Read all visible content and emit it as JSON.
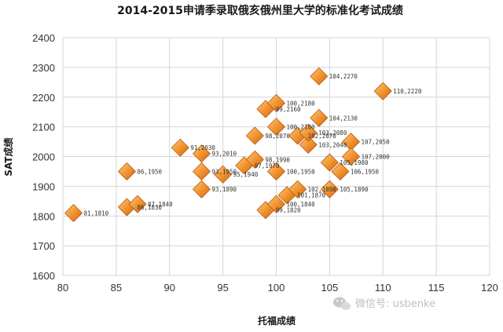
{
  "chart_data": {
    "type": "scatter",
    "title": "2014-2015申请季录取俄亥俄州里大学的标准化考试成绩",
    "xlabel": "托福成绩",
    "ylabel": "SAT成绩",
    "xlim": [
      80,
      120
    ],
    "ylim": [
      1600,
      2400
    ],
    "xticks": [
      "80",
      "85",
      "90",
      "95",
      "100",
      "105",
      "110",
      "115",
      "120"
    ],
    "yticks": [
      "1600",
      "1700",
      "1800",
      "1900",
      "2000",
      "2100",
      "2200",
      "2300",
      "2400"
    ],
    "grid": true,
    "marker_color": "#f0902a",
    "marker_shape": "diamond",
    "points": [
      {
        "x": 81,
        "y": 1810,
        "label": "81,1810"
      },
      {
        "x": 86,
        "y": 1950,
        "label": "86,1950"
      },
      {
        "x": 86,
        "y": 1830,
        "label": "86,1830"
      },
      {
        "x": 87,
        "y": 1840,
        "label": "87,1840"
      },
      {
        "x": 91,
        "y": 2030,
        "label": "91,2030"
      },
      {
        "x": 93,
        "y": 2010,
        "label": "93,2010"
      },
      {
        "x": 93,
        "y": 1950,
        "label": "93,1950"
      },
      {
        "x": 93,
        "y": 1890,
        "label": "93,1890"
      },
      {
        "x": 95,
        "y": 1940,
        "label": "95,1940"
      },
      {
        "x": 97,
        "y": 1970,
        "label": "97,1970"
      },
      {
        "x": 98,
        "y": 2070,
        "label": "98,2070"
      },
      {
        "x": 98,
        "y": 1990,
        "label": "98,1990"
      },
      {
        "x": 99,
        "y": 2160,
        "label": "99,2160"
      },
      {
        "x": 99,
        "y": 1820,
        "label": "99,1820"
      },
      {
        "x": 100,
        "y": 2180,
        "label": "100,2180"
      },
      {
        "x": 100,
        "y": 2100,
        "label": "100,2100"
      },
      {
        "x": 100,
        "y": 1950,
        "label": "100,1950"
      },
      {
        "x": 100,
        "y": 1840,
        "label": "100,1840"
      },
      {
        "x": 101,
        "y": 1870,
        "label": "101,1870"
      },
      {
        "x": 102,
        "y": 1890,
        "label": "102,1890"
      },
      {
        "x": 102,
        "y": 2070,
        "label": "102,2070"
      },
      {
        "x": 103,
        "y": 2040,
        "label": "103,2040"
      },
      {
        "x": 103,
        "y": 2080,
        "label": "103,2080"
      },
      {
        "x": 104,
        "y": 2270,
        "label": "104,2270"
      },
      {
        "x": 104,
        "y": 2130,
        "label": "104,2130"
      },
      {
        "x": 105,
        "y": 1980,
        "label": "105,1980"
      },
      {
        "x": 105,
        "y": 1890,
        "label": "105,1890"
      },
      {
        "x": 106,
        "y": 1950,
        "label": "106,1950"
      },
      {
        "x": 107,
        "y": 2050,
        "label": "107,2050"
      },
      {
        "x": 107,
        "y": 2000,
        "label": "107,2000"
      },
      {
        "x": 110,
        "y": 2220,
        "label": "110,2220"
      }
    ]
  },
  "watermark": {
    "text": "微信号: usbenke",
    "icon": "wechat-icon"
  }
}
